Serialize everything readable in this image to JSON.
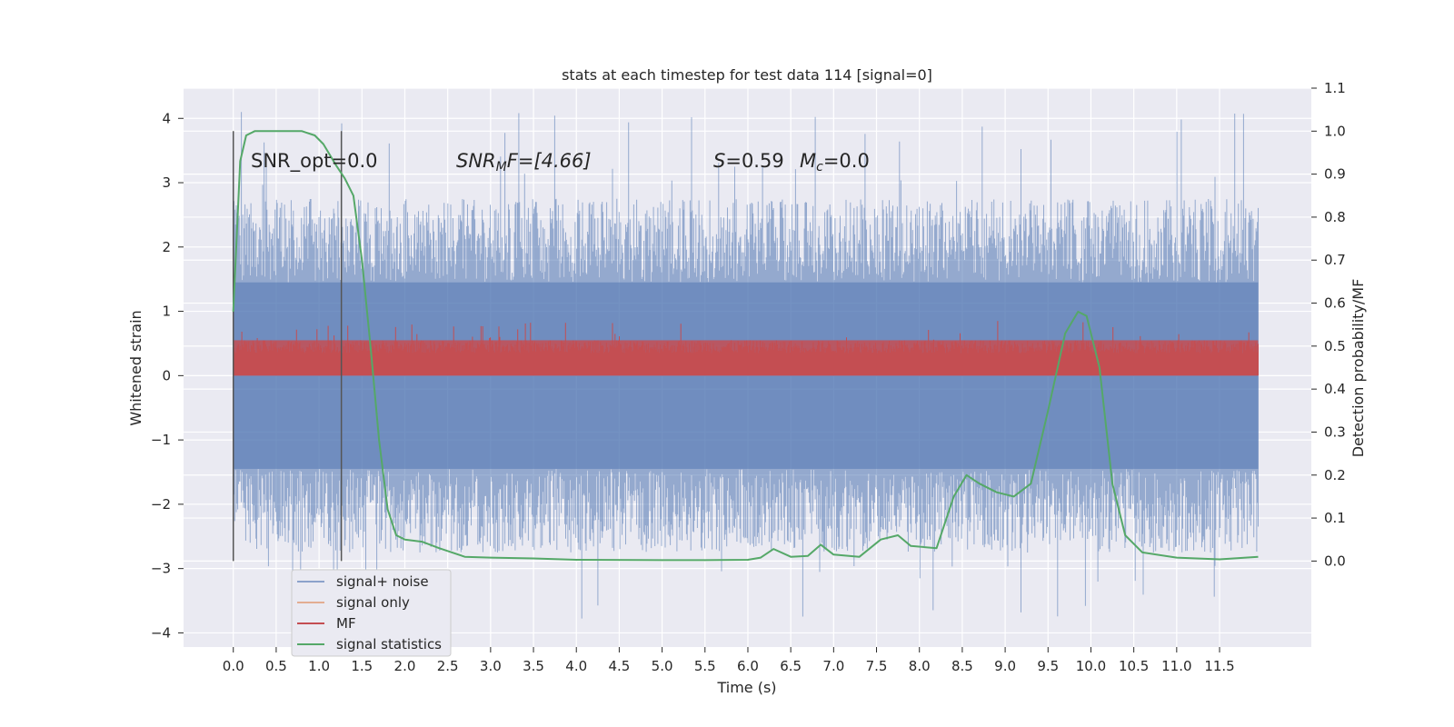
{
  "chart_data": {
    "type": "line",
    "title": "stats at each timestep for test data 114 [signal=0]",
    "xlabel": "Time (s)",
    "ylabel_left": "Whitened strain",
    "ylabel_right": "Detection probability/MF",
    "xlim": [
      -0.58,
      12.57
    ],
    "ylim_left": [
      -4.22,
      4.47
    ],
    "ylim_right": [
      -0.2,
      1.1
    ],
    "xticks": [
      "0.0",
      "0.5",
      "1.0",
      "1.5",
      "2.0",
      "2.5",
      "3.0",
      "3.5",
      "4.0",
      "4.5",
      "5.0",
      "5.5",
      "6.0",
      "6.5",
      "7.0",
      "7.5",
      "8.0",
      "8.5",
      "9.0",
      "9.5",
      "10.0",
      "10.5",
      "11.0",
      "11.5"
    ],
    "yticks_left": [
      "4",
      "3",
      "2",
      "1",
      "0",
      "−1",
      "−2",
      "−3",
      "−4"
    ],
    "yticks_right": [
      "0.0",
      "0.1",
      "0.2",
      "0.3",
      "0.4",
      "0.5",
      "0.6",
      "0.7",
      "0.8",
      "0.9",
      "1.0",
      "1.1"
    ],
    "grid": true,
    "legend_position": "lower-left",
    "annotations": {
      "snr_opt": "SNR_opt=0.0",
      "snr_mf_sym": "SNR",
      "snr_mf_sub": "M",
      "snr_mf_rest": "F=[4.66]",
      "s_sym": "S",
      "s_rest": "=0.59",
      "mc_sym": "M",
      "mc_sub": "c",
      "mc_rest": "=0.0"
    },
    "vertical_lines_x": [
      0.0,
      1.26
    ],
    "series": [
      {
        "name": "signal+ noise",
        "color": "#4c72b0",
        "band_x": [
          0.0,
          11.95
        ],
        "band_typical": [
          -1.45,
          1.45
        ],
        "band_extremes": [
          -3.8,
          4.1
        ]
      },
      {
        "name": "signal only",
        "color": "#dd8452",
        "values": []
      },
      {
        "name": "MF",
        "color": "#c44e52",
        "band_x": [
          0.0,
          11.95
        ],
        "band_range": [
          0.0,
          0.62
        ]
      },
      {
        "name": "signal statistics",
        "color": "#55a868",
        "x": [
          0.0,
          0.08,
          0.15,
          0.25,
          0.5,
          0.8,
          0.95,
          1.05,
          1.2,
          1.3,
          1.4,
          1.5,
          1.6,
          1.7,
          1.8,
          1.9,
          2.0,
          2.2,
          2.4,
          2.7,
          3.0,
          3.5,
          4.0,
          5.0,
          5.5,
          6.0,
          6.15,
          6.3,
          6.5,
          6.7,
          6.85,
          7.0,
          7.3,
          7.55,
          7.75,
          7.9,
          8.2,
          8.4,
          8.55,
          8.7,
          8.9,
          9.1,
          9.3,
          9.5,
          9.7,
          9.85,
          9.95,
          10.1,
          10.25,
          10.4,
          10.6,
          11.0,
          11.5,
          11.95
        ],
        "values": [
          0.58,
          0.93,
          0.99,
          1.0,
          1.0,
          1.0,
          0.99,
          0.97,
          0.92,
          0.89,
          0.85,
          0.7,
          0.5,
          0.28,
          0.12,
          0.06,
          0.05,
          0.045,
          0.03,
          0.01,
          0.008,
          0.006,
          0.003,
          0.002,
          0.002,
          0.003,
          0.008,
          0.028,
          0.01,
          0.012,
          0.038,
          0.015,
          0.01,
          0.05,
          0.06,
          0.035,
          0.03,
          0.15,
          0.2,
          0.18,
          0.16,
          0.15,
          0.18,
          0.35,
          0.53,
          0.58,
          0.57,
          0.45,
          0.18,
          0.06,
          0.02,
          0.008,
          0.004,
          0.01
        ]
      }
    ]
  }
}
